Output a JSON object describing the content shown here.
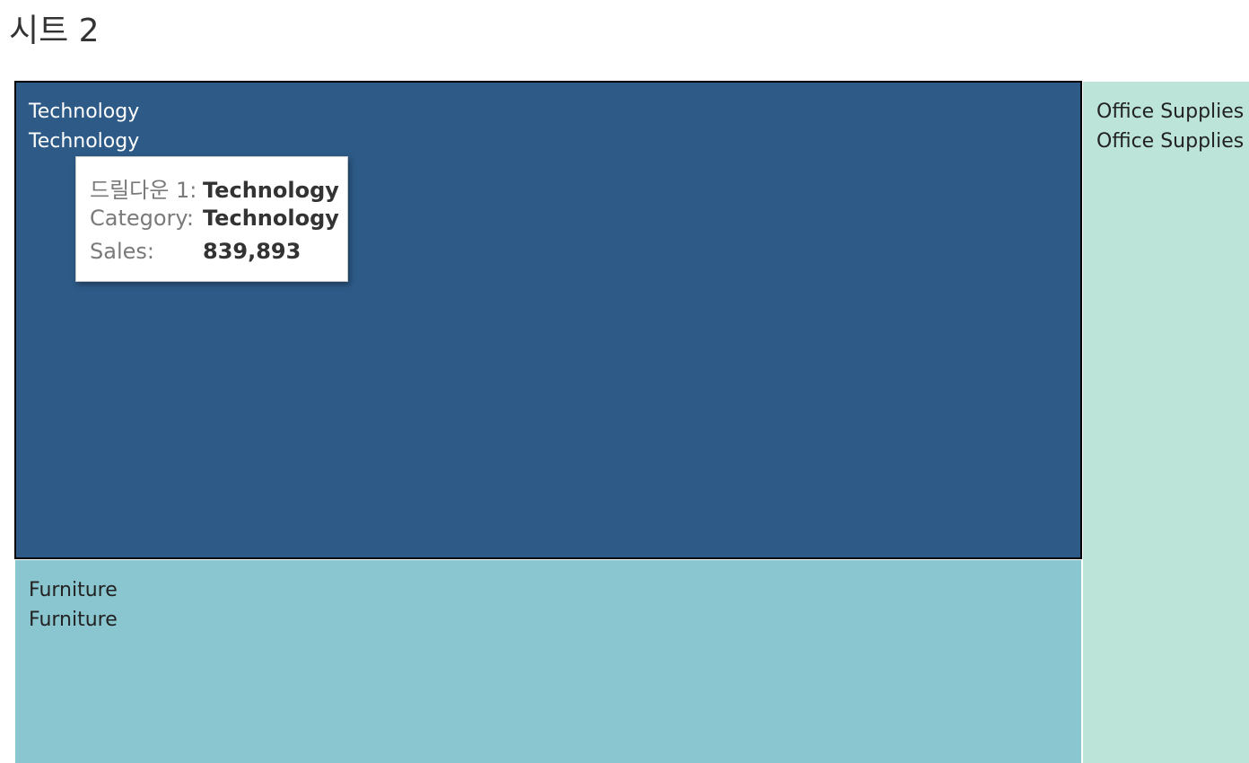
{
  "sheet": {
    "title": "시트 2"
  },
  "colors": {
    "technology": "#2d5a87",
    "furniture": "#8ac6cf",
    "office_supplies": "#bce4d8",
    "highlight_border": "#000000",
    "label_dark": "#222222",
    "label_light": "#ffffff"
  },
  "chart_data": {
    "type": "treemap",
    "measure": "Sales",
    "nodes": [
      {
        "key": "technology",
        "label": "Technology",
        "category": "Technology",
        "value": 839893,
        "selected": true,
        "label_color": "label_light"
      },
      {
        "key": "furniture",
        "label": "Furniture",
        "category": "Furniture",
        "value": 359000,
        "selected": false,
        "label_color": "label_dark"
      },
      {
        "key": "office_supplies",
        "label": "Office Supplies",
        "category": "Office Supplies",
        "value": 220000,
        "selected": false,
        "label_color": "label_dark"
      }
    ]
  },
  "tooltip": {
    "rows": [
      {
        "label": "드릴다운 1:",
        "value": "Technology"
      },
      {
        "label": "Category:",
        "value": "Technology"
      },
      {
        "label": "Sales:",
        "value": "839,893"
      }
    ]
  }
}
